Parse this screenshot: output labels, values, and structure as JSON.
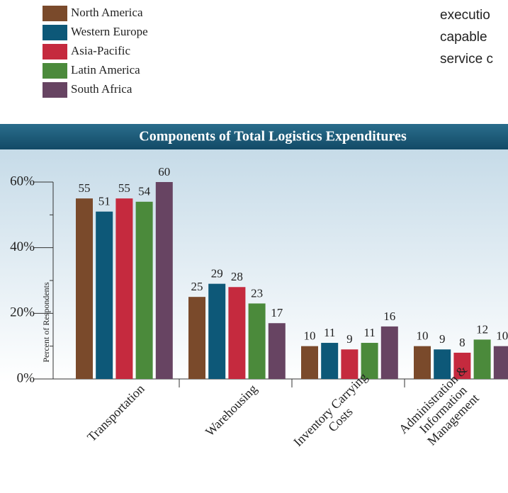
{
  "side_text": [
    "executio",
    "capable",
    "service c"
  ],
  "chart_data": {
    "type": "bar",
    "title": "Components of Total Logistics Expenditures",
    "ylabel": "Percent of Respondents",
    "categories": [
      "Transportation",
      "Warehousing",
      "Inventory Carrying\nCosts",
      "Administration &\nInformation\nManagement"
    ],
    "series": [
      {
        "name": "North America",
        "color": "#7a4a2b",
        "values": [
          55,
          25,
          10,
          10
        ]
      },
      {
        "name": "Western Europe",
        "color": "#0d5878",
        "values": [
          51,
          29,
          11,
          9
        ]
      },
      {
        "name": "Asia-Pacific",
        "color": "#c52a3e",
        "values": [
          55,
          28,
          9,
          8
        ]
      },
      {
        "name": "Latin America",
        "color": "#4b8a3b",
        "values": [
          54,
          23,
          11,
          12
        ]
      },
      {
        "name": "South Africa",
        "color": "#674462",
        "values": [
          60,
          17,
          16,
          10
        ]
      }
    ],
    "ylim": [
      0,
      60
    ],
    "yticks": [
      {
        "value": 0,
        "label": "0%"
      },
      {
        "value": 20,
        "label": "20%"
      },
      {
        "value": 40,
        "label": "40%"
      },
      {
        "value": 60,
        "label": "60%"
      }
    ],
    "yminor": [
      10,
      30,
      50
    ]
  }
}
